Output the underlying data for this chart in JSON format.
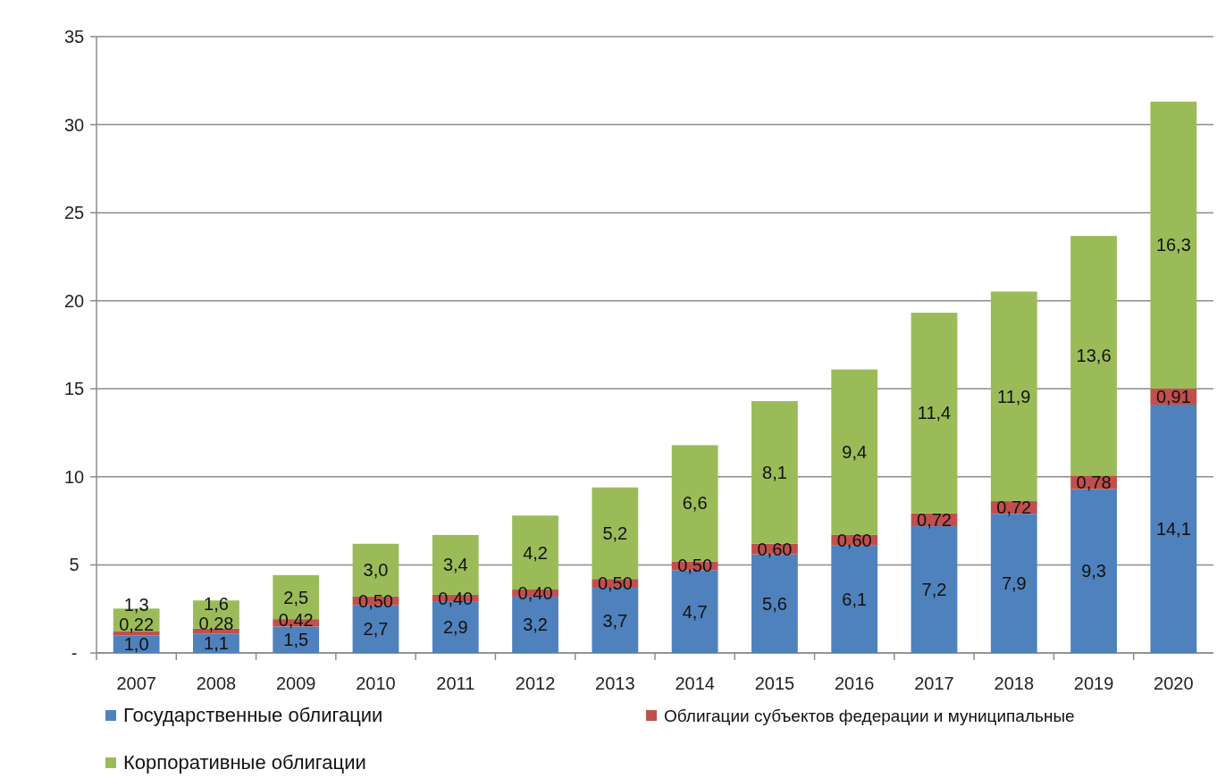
{
  "chart_data": {
    "type": "bar",
    "stacked": true,
    "categories": [
      "2007",
      "2008",
      "2009",
      "2010",
      "2011",
      "2012",
      "2013",
      "2014",
      "2015",
      "2016",
      "2017",
      "2018",
      "2019",
      "2020"
    ],
    "series": [
      {
        "name": "Государственные  облигации",
        "color": "#4f81bd",
        "values": [
          1.0,
          1.1,
          1.5,
          2.7,
          2.9,
          3.2,
          3.7,
          4.7,
          5.6,
          6.1,
          7.2,
          7.9,
          9.3,
          14.1
        ],
        "value_labels": [
          "1,0",
          "1,1",
          "1,5",
          "2,7",
          "2,9",
          "3,2",
          "3,7",
          "4,7",
          "5,6",
          "6,1",
          "7,2",
          "7,9",
          "9,3",
          "14,1"
        ]
      },
      {
        "name": "Облигации субъектов федерации и муниципальные",
        "color": "#c0504d",
        "values": [
          0.22,
          0.28,
          0.42,
          0.5,
          0.4,
          0.4,
          0.5,
          0.5,
          0.6,
          0.6,
          0.72,
          0.72,
          0.78,
          0.91
        ],
        "value_labels": [
          "0,22",
          "0,28",
          "0,42",
          "0,50",
          "0,40",
          "0,40",
          "0,50",
          "0,50",
          "0,60",
          "0,60",
          "0,72",
          "0,72",
          "0,78",
          "0,91"
        ]
      },
      {
        "name": "Корпоративные  облигации",
        "color": "#9bbb59",
        "values": [
          1.3,
          1.6,
          2.5,
          3.0,
          3.4,
          4.2,
          5.2,
          6.6,
          8.1,
          9.4,
          11.4,
          11.9,
          13.6,
          16.3
        ],
        "value_labels": [
          "1,3",
          "1,6",
          "2,5",
          "3,0",
          "3,4",
          "4,2",
          "5,2",
          "6,6",
          "8,1",
          "9,4",
          "11,4",
          "11,9",
          "13,6",
          "16,3"
        ]
      }
    ],
    "ylim": [
      0,
      35
    ],
    "yticks": [
      {
        "value": 0,
        "label": "-"
      },
      5,
      10,
      15,
      20,
      25,
      30,
      35
    ],
    "grid": "y",
    "legend": "bottom"
  }
}
